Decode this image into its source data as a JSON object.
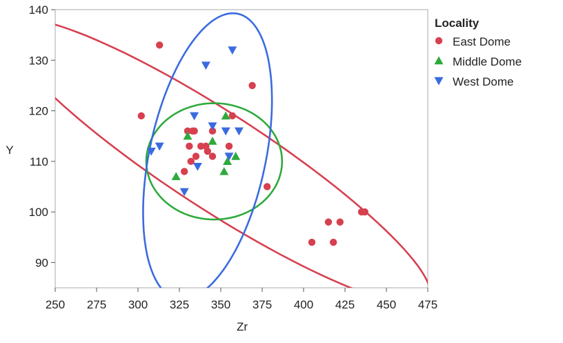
{
  "chart_data": {
    "type": "scatter",
    "xlabel": "Zr",
    "ylabel": "Y",
    "xlim": [
      250,
      475
    ],
    "ylim": [
      85,
      140
    ],
    "xticks": [
      250,
      275,
      300,
      325,
      350,
      375,
      400,
      425,
      450,
      475
    ],
    "yticks": [
      90,
      100,
      110,
      120,
      130,
      140
    ],
    "grid": false,
    "legend": {
      "title": "Locality",
      "placement": "right"
    },
    "series": [
      {
        "name": "East Dome",
        "marker": "circle",
        "color": "#d6404f",
        "points": [
          [
            313,
            133
          ],
          [
            302,
            119
          ],
          [
            369,
            125
          ],
          [
            328,
            108
          ],
          [
            332,
            110
          ],
          [
            335,
            111
          ],
          [
            330,
            116
          ],
          [
            333,
            116
          ],
          [
            334,
            116
          ],
          [
            331,
            113
          ],
          [
            338,
            113
          ],
          [
            341,
            113
          ],
          [
            342,
            112
          ],
          [
            345,
            116
          ],
          [
            345,
            111
          ],
          [
            355,
            113
          ],
          [
            357,
            119
          ],
          [
            378,
            105
          ],
          [
            405,
            94
          ],
          [
            415,
            98
          ],
          [
            418,
            94
          ],
          [
            422,
            98
          ],
          [
            435,
            100
          ],
          [
            437,
            100
          ]
        ],
        "ellipse": {
          "cx": 348,
          "cy": 110,
          "rx_units": 152,
          "ry_units": 9.5,
          "angle_deg": 33
        }
      },
      {
        "name": "Middle Dome",
        "marker": "triangle-up",
        "color": "#2eaa3c",
        "points": [
          [
            323,
            107
          ],
          [
            330,
            115
          ],
          [
            345,
            114
          ],
          [
            352,
            108
          ],
          [
            354,
            110
          ],
          [
            353,
            119
          ],
          [
            359,
            111
          ]
        ],
        "ellipse": {
          "cx": 346,
          "cy": 110,
          "rx_units": 41,
          "ry_units": 11.5,
          "angle_deg": 0
        }
      },
      {
        "name": "West Dome",
        "marker": "triangle-down",
        "color": "#3a6bde",
        "points": [
          [
            308,
            112
          ],
          [
            313,
            113
          ],
          [
            328,
            104
          ],
          [
            334,
            119
          ],
          [
            336,
            109
          ],
          [
            341,
            129
          ],
          [
            345,
            117
          ],
          [
            353,
            116
          ],
          [
            355,
            111
          ],
          [
            357,
            132
          ],
          [
            361,
            116
          ]
        ],
        "ellipse": {
          "cx": 342,
          "cy": 111,
          "rx_units": 88,
          "ry_units": 11.5,
          "angle_deg": -78
        }
      }
    ]
  }
}
